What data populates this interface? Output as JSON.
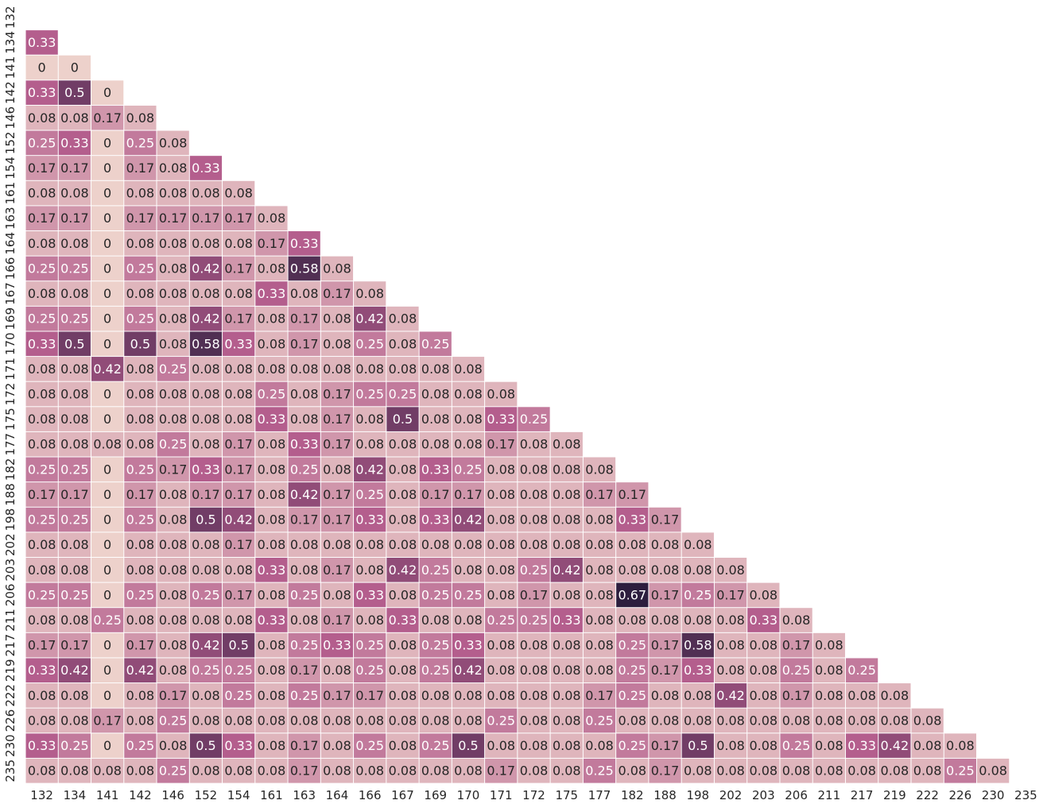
{
  "chart_data": {
    "type": "heatmap",
    "title": "",
    "xlabel": "",
    "ylabel": "",
    "labels": [
      "132",
      "134",
      "141",
      "142",
      "146",
      "152",
      "154",
      "161",
      "163",
      "164",
      "166",
      "167",
      "169",
      "170",
      "171",
      "172",
      "175",
      "177",
      "182",
      "188",
      "198",
      "202",
      "203",
      "206",
      "211",
      "217",
      "219",
      "222",
      "226",
      "230",
      "235"
    ],
    "value_range": [
      0,
      0.67
    ],
    "colorbar": false,
    "mask": "upper-triangle-and-diagonal",
    "colors": {
      "low": "#edd1cb",
      "mid": "#b35c8c",
      "high": "#2d1e3e",
      "grid": "#ffffff",
      "text_dark": "#262626",
      "text_light": "#ffffff"
    },
    "rows": [
      [],
      [
        0.33
      ],
      [
        0,
        0
      ],
      [
        0.33,
        0.5,
        0
      ],
      [
        0.08,
        0.08,
        0.17,
        0.08
      ],
      [
        0.25,
        0.33,
        0,
        0.25,
        0.08
      ],
      [
        0.17,
        0.17,
        0,
        0.17,
        0.08,
        0.33
      ],
      [
        0.08,
        0.08,
        0,
        0.08,
        0.08,
        0.08,
        0.08
      ],
      [
        0.17,
        0.17,
        0,
        0.17,
        0.17,
        0.17,
        0.17,
        0.08
      ],
      [
        0.08,
        0.08,
        0,
        0.08,
        0.08,
        0.08,
        0.08,
        0.17,
        0.33
      ],
      [
        0.25,
        0.25,
        0,
        0.25,
        0.08,
        0.42,
        0.17,
        0.08,
        0.58,
        0.08
      ],
      [
        0.08,
        0.08,
        0,
        0.08,
        0.08,
        0.08,
        0.08,
        0.33,
        0.08,
        0.17,
        0.08
      ],
      [
        0.25,
        0.25,
        0,
        0.25,
        0.08,
        0.42,
        0.17,
        0.08,
        0.17,
        0.08,
        0.42,
        0.08
      ],
      [
        0.33,
        0.5,
        0,
        0.5,
        0.08,
        0.58,
        0.33,
        0.08,
        0.17,
        0.08,
        0.25,
        0.08,
        0.25
      ],
      [
        0.08,
        0.08,
        0.42,
        0.08,
        0.25,
        0.08,
        0.08,
        0.08,
        0.08,
        0.08,
        0.08,
        0.08,
        0.08,
        0.08
      ],
      [
        0.08,
        0.08,
        0,
        0.08,
        0.08,
        0.08,
        0.08,
        0.25,
        0.08,
        0.17,
        0.25,
        0.25,
        0.08,
        0.08,
        0.08
      ],
      [
        0.08,
        0.08,
        0,
        0.08,
        0.08,
        0.08,
        0.08,
        0.33,
        0.08,
        0.17,
        0.08,
        0.5,
        0.08,
        0.08,
        0.33,
        0.25
      ],
      [
        0.08,
        0.08,
        0.08,
        0.08,
        0.25,
        0.08,
        0.17,
        0.08,
        0.33,
        0.17,
        0.08,
        0.08,
        0.08,
        0.08,
        0.17,
        0.08,
        0.08
      ],
      [
        0.25,
        0.25,
        0,
        0.25,
        0.17,
        0.33,
        0.17,
        0.08,
        0.25,
        0.08,
        0.42,
        0.08,
        0.33,
        0.25,
        0.08,
        0.08,
        0.08,
        0.08
      ],
      [
        0.17,
        0.17,
        0,
        0.17,
        0.08,
        0.17,
        0.17,
        0.08,
        0.42,
        0.17,
        0.25,
        0.08,
        0.17,
        0.17,
        0.08,
        0.08,
        0.08,
        0.17,
        0.17
      ],
      [
        0.25,
        0.25,
        0,
        0.25,
        0.08,
        0.5,
        0.42,
        0.08,
        0.17,
        0.17,
        0.33,
        0.08,
        0.33,
        0.42,
        0.08,
        0.08,
        0.08,
        0.08,
        0.33,
        0.17
      ],
      [
        0.08,
        0.08,
        0,
        0.08,
        0.08,
        0.08,
        0.17,
        0.08,
        0.08,
        0.08,
        0.08,
        0.08,
        0.08,
        0.08,
        0.08,
        0.08,
        0.08,
        0.08,
        0.08,
        0.08,
        0.08
      ],
      [
        0.08,
        0.08,
        0,
        0.08,
        0.08,
        0.08,
        0.08,
        0.33,
        0.08,
        0.17,
        0.08,
        0.42,
        0.25,
        0.08,
        0.08,
        0.25,
        0.42,
        0.08,
        0.08,
        0.08,
        0.08,
        0.08
      ],
      [
        0.25,
        0.25,
        0,
        0.25,
        0.08,
        0.25,
        0.17,
        0.08,
        0.25,
        0.08,
        0.33,
        0.08,
        0.25,
        0.25,
        0.08,
        0.17,
        0.08,
        0.08,
        0.67,
        0.17,
        0.25,
        0.17,
        0.08
      ],
      [
        0.08,
        0.08,
        0.25,
        0.08,
        0.08,
        0.08,
        0.08,
        0.33,
        0.08,
        0.17,
        0.08,
        0.33,
        0.08,
        0.08,
        0.25,
        0.25,
        0.33,
        0.08,
        0.08,
        0.08,
        0.08,
        0.08,
        0.33,
        0.08
      ],
      [
        0.17,
        0.17,
        0,
        0.17,
        0.08,
        0.42,
        0.5,
        0.08,
        0.25,
        0.33,
        0.25,
        0.08,
        0.25,
        0.33,
        0.08,
        0.08,
        0.08,
        0.08,
        0.25,
        0.17,
        0.58,
        0.08,
        0.08,
        0.17,
        0.08
      ],
      [
        0.33,
        0.42,
        0,
        0.42,
        0.08,
        0.25,
        0.25,
        0.08,
        0.17,
        0.08,
        0.25,
        0.08,
        0.25,
        0.42,
        0.08,
        0.08,
        0.08,
        0.08,
        0.25,
        0.17,
        0.33,
        0.08,
        0.08,
        0.25,
        0.08,
        0.25
      ],
      [
        0.08,
        0.08,
        0,
        0.08,
        0.17,
        0.08,
        0.25,
        0.08,
        0.25,
        0.17,
        0.17,
        0.08,
        0.08,
        0.08,
        0.08,
        0.08,
        0.08,
        0.17,
        0.25,
        0.08,
        0.08,
        0.42,
        0.08,
        0.17,
        0.08,
        0.08,
        0.08
      ],
      [
        0.08,
        0.08,
        0.17,
        0.08,
        0.25,
        0.08,
        0.08,
        0.08,
        0.08,
        0.08,
        0.08,
        0.08,
        0.08,
        0.08,
        0.25,
        0.08,
        0.08,
        0.25,
        0.08,
        0.08,
        0.08,
        0.08,
        0.08,
        0.08,
        0.08,
        0.08,
        0.08,
        0.08
      ],
      [
        0.33,
        0.25,
        0,
        0.25,
        0.08,
        0.5,
        0.33,
        0.08,
        0.17,
        0.08,
        0.25,
        0.08,
        0.25,
        0.5,
        0.08,
        0.08,
        0.08,
        0.08,
        0.25,
        0.17,
        0.5,
        0.08,
        0.08,
        0.25,
        0.08,
        0.33,
        0.42,
        0.08,
        0.08
      ],
      [
        0.08,
        0.08,
        0.08,
        0.08,
        0.25,
        0.08,
        0.08,
        0.08,
        0.17,
        0.08,
        0.08,
        0.08,
        0.08,
        0.08,
        0.17,
        0.08,
        0.08,
        0.25,
        0.08,
        0.17,
        0.08,
        0.08,
        0.08,
        0.08,
        0.08,
        0.08,
        0.08,
        0.08,
        0.25,
        0.08
      ]
    ]
  }
}
